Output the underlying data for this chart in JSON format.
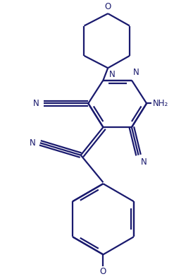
{
  "bg_color": "#ffffff",
  "line_color": "#1a1a6e",
  "lw": 1.6,
  "figsize": [
    2.47,
    3.95
  ],
  "dpi": 100,
  "xlim": [
    0,
    10
  ],
  "ylim": [
    0,
    16
  ],
  "fs": 8.5
}
